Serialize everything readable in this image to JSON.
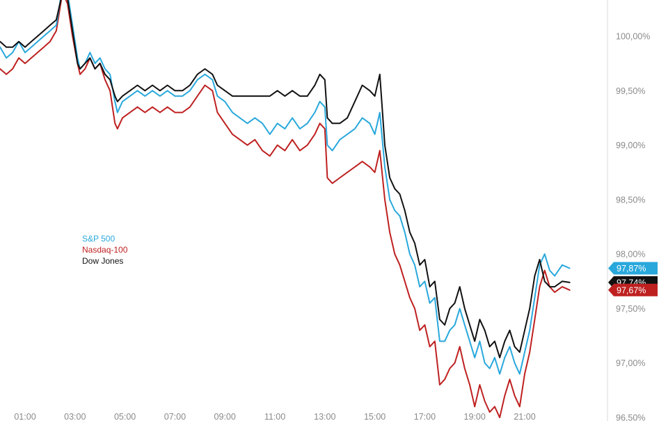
{
  "chart_data": {
    "type": "line",
    "x_ticks": [
      "01:00",
      "03:00",
      "05:00",
      "07:00",
      "09:00",
      "11:00",
      "13:00",
      "15:00",
      "17:00",
      "19:00",
      "21:00"
    ],
    "y_ticks": [
      "100,00%",
      "99,50%",
      "99,00%",
      "98,50%",
      "98,00%",
      "97,50%",
      "97,00%",
      "96,50%"
    ],
    "ylim": [
      96.5,
      100.5
    ],
    "xlim": [
      0.0,
      23.0
    ],
    "grid": false,
    "legend_position": "left-middle",
    "series": [
      {
        "name": "S&P 500",
        "color": "#29a8dc",
        "last_label": "97,87%",
        "points": [
          [
            0.0,
            99.9
          ],
          [
            0.25,
            99.8
          ],
          [
            0.5,
            99.85
          ],
          [
            0.75,
            99.95
          ],
          [
            1.0,
            99.85
          ],
          [
            1.25,
            99.9
          ],
          [
            1.5,
            99.95
          ],
          [
            1.75,
            100.0
          ],
          [
            2.0,
            100.05
          ],
          [
            2.25,
            100.1
          ],
          [
            2.5,
            100.45
          ],
          [
            2.7,
            100.4
          ],
          [
            2.9,
            100.1
          ],
          [
            3.1,
            99.8
          ],
          [
            3.2,
            99.7
          ],
          [
            3.4,
            99.75
          ],
          [
            3.6,
            99.85
          ],
          [
            3.8,
            99.75
          ],
          [
            4.0,
            99.8
          ],
          [
            4.2,
            99.7
          ],
          [
            4.4,
            99.65
          ],
          [
            4.6,
            99.4
          ],
          [
            4.7,
            99.3
          ],
          [
            4.9,
            99.4
          ],
          [
            5.2,
            99.45
          ],
          [
            5.5,
            99.5
          ],
          [
            5.8,
            99.45
          ],
          [
            6.1,
            99.5
          ],
          [
            6.4,
            99.45
          ],
          [
            6.7,
            99.5
          ],
          [
            7.0,
            99.45
          ],
          [
            7.3,
            99.45
          ],
          [
            7.6,
            99.5
          ],
          [
            7.9,
            99.6
          ],
          [
            8.2,
            99.65
          ],
          [
            8.5,
            99.6
          ],
          [
            8.7,
            99.45
          ],
          [
            9.0,
            99.4
          ],
          [
            9.3,
            99.3
          ],
          [
            9.6,
            99.25
          ],
          [
            9.9,
            99.2
          ],
          [
            10.2,
            99.25
          ],
          [
            10.5,
            99.2
          ],
          [
            10.8,
            99.1
          ],
          [
            11.1,
            99.2
          ],
          [
            11.4,
            99.15
          ],
          [
            11.7,
            99.25
          ],
          [
            12.0,
            99.15
          ],
          [
            12.3,
            99.2
          ],
          [
            12.6,
            99.3
          ],
          [
            12.8,
            99.4
          ],
          [
            13.0,
            99.35
          ],
          [
            13.1,
            99.0
          ],
          [
            13.3,
            98.95
          ],
          [
            13.6,
            99.05
          ],
          [
            13.9,
            99.1
          ],
          [
            14.2,
            99.15
          ],
          [
            14.5,
            99.25
          ],
          [
            14.8,
            99.2
          ],
          [
            15.0,
            99.1
          ],
          [
            15.2,
            99.3
          ],
          [
            15.4,
            98.8
          ],
          [
            15.6,
            98.5
          ],
          [
            15.8,
            98.4
          ],
          [
            16.0,
            98.35
          ],
          [
            16.2,
            98.2
          ],
          [
            16.4,
            98.0
          ],
          [
            16.6,
            97.9
          ],
          [
            16.8,
            97.7
          ],
          [
            17.0,
            97.75
          ],
          [
            17.2,
            97.55
          ],
          [
            17.4,
            97.6
          ],
          [
            17.6,
            97.2
          ],
          [
            17.8,
            97.2
          ],
          [
            18.0,
            97.3
          ],
          [
            18.2,
            97.35
          ],
          [
            18.4,
            97.5
          ],
          [
            18.6,
            97.35
          ],
          [
            18.8,
            97.2
          ],
          [
            19.0,
            97.05
          ],
          [
            19.2,
            97.2
          ],
          [
            19.4,
            97.0
          ],
          [
            19.6,
            96.95
          ],
          [
            19.8,
            97.05
          ],
          [
            20.0,
            96.9
          ],
          [
            20.2,
            97.05
          ],
          [
            20.4,
            97.15
          ],
          [
            20.6,
            97.0
          ],
          [
            20.8,
            96.9
          ],
          [
            21.0,
            97.1
          ],
          [
            21.2,
            97.3
          ],
          [
            21.4,
            97.6
          ],
          [
            21.6,
            97.9
          ],
          [
            21.8,
            98.0
          ],
          [
            22.0,
            97.85
          ],
          [
            22.2,
            97.8
          ],
          [
            22.5,
            97.9
          ],
          [
            22.8,
            97.87
          ]
        ]
      },
      {
        "name": "Nasdaq-100",
        "color": "#be2020",
        "last_label": "97,67%",
        "points": [
          [
            0.0,
            99.7
          ],
          [
            0.25,
            99.65
          ],
          [
            0.5,
            99.7
          ],
          [
            0.75,
            99.8
          ],
          [
            1.0,
            99.75
          ],
          [
            1.25,
            99.8
          ],
          [
            1.5,
            99.85
          ],
          [
            1.75,
            99.9
          ],
          [
            2.0,
            99.95
          ],
          [
            2.25,
            100.05
          ],
          [
            2.5,
            100.4
          ],
          [
            2.7,
            100.3
          ],
          [
            2.9,
            100.0
          ],
          [
            3.1,
            99.75
          ],
          [
            3.2,
            99.65
          ],
          [
            3.4,
            99.7
          ],
          [
            3.6,
            99.8
          ],
          [
            3.8,
            99.7
          ],
          [
            4.0,
            99.75
          ],
          [
            4.2,
            99.6
          ],
          [
            4.4,
            99.5
          ],
          [
            4.6,
            99.2
          ],
          [
            4.7,
            99.15
          ],
          [
            4.9,
            99.25
          ],
          [
            5.2,
            99.3
          ],
          [
            5.5,
            99.35
          ],
          [
            5.8,
            99.3
          ],
          [
            6.1,
            99.35
          ],
          [
            6.4,
            99.3
          ],
          [
            6.7,
            99.35
          ],
          [
            7.0,
            99.3
          ],
          [
            7.3,
            99.3
          ],
          [
            7.6,
            99.35
          ],
          [
            7.9,
            99.45
          ],
          [
            8.2,
            99.55
          ],
          [
            8.5,
            99.5
          ],
          [
            8.7,
            99.3
          ],
          [
            9.0,
            99.2
          ],
          [
            9.3,
            99.1
          ],
          [
            9.6,
            99.05
          ],
          [
            9.9,
            99.0
          ],
          [
            10.2,
            99.05
          ],
          [
            10.5,
            98.95
          ],
          [
            10.8,
            98.9
          ],
          [
            11.1,
            99.0
          ],
          [
            11.4,
            98.95
          ],
          [
            11.7,
            99.05
          ],
          [
            12.0,
            98.95
          ],
          [
            12.3,
            99.0
          ],
          [
            12.6,
            99.1
          ],
          [
            12.8,
            99.2
          ],
          [
            13.0,
            99.15
          ],
          [
            13.1,
            98.7
          ],
          [
            13.3,
            98.65
          ],
          [
            13.6,
            98.7
          ],
          [
            13.9,
            98.75
          ],
          [
            14.2,
            98.8
          ],
          [
            14.5,
            98.85
          ],
          [
            14.8,
            98.8
          ],
          [
            15.0,
            98.75
          ],
          [
            15.2,
            98.95
          ],
          [
            15.4,
            98.5
          ],
          [
            15.6,
            98.2
          ],
          [
            15.8,
            98.0
          ],
          [
            16.0,
            97.9
          ],
          [
            16.2,
            97.75
          ],
          [
            16.4,
            97.6
          ],
          [
            16.6,
            97.5
          ],
          [
            16.8,
            97.3
          ],
          [
            17.0,
            97.35
          ],
          [
            17.2,
            97.15
          ],
          [
            17.4,
            97.2
          ],
          [
            17.6,
            96.8
          ],
          [
            17.8,
            96.85
          ],
          [
            18.0,
            96.95
          ],
          [
            18.2,
            97.0
          ],
          [
            18.4,
            97.15
          ],
          [
            18.6,
            96.95
          ],
          [
            18.8,
            96.8
          ],
          [
            19.0,
            96.6
          ],
          [
            19.2,
            96.8
          ],
          [
            19.4,
            96.65
          ],
          [
            19.6,
            96.55
          ],
          [
            19.8,
            96.6
          ],
          [
            20.0,
            96.5
          ],
          [
            20.2,
            96.7
          ],
          [
            20.4,
            96.85
          ],
          [
            20.6,
            96.7
          ],
          [
            20.8,
            96.6
          ],
          [
            21.0,
            96.9
          ],
          [
            21.2,
            97.1
          ],
          [
            21.4,
            97.4
          ],
          [
            21.6,
            97.7
          ],
          [
            21.8,
            97.85
          ],
          [
            22.0,
            97.7
          ],
          [
            22.2,
            97.65
          ],
          [
            22.5,
            97.7
          ],
          [
            22.8,
            97.67
          ]
        ]
      },
      {
        "name": "Dow Jones",
        "color": "#111111",
        "last_label": "97,74%",
        "points": [
          [
            0.0,
            99.95
          ],
          [
            0.25,
            99.9
          ],
          [
            0.5,
            99.9
          ],
          [
            0.75,
            99.95
          ],
          [
            1.0,
            99.9
          ],
          [
            1.25,
            99.95
          ],
          [
            1.5,
            100.0
          ],
          [
            1.75,
            100.05
          ],
          [
            2.0,
            100.1
          ],
          [
            2.25,
            100.15
          ],
          [
            2.5,
            100.4
          ],
          [
            2.7,
            100.35
          ],
          [
            2.9,
            100.05
          ],
          [
            3.1,
            99.75
          ],
          [
            3.2,
            99.7
          ],
          [
            3.4,
            99.75
          ],
          [
            3.6,
            99.8
          ],
          [
            3.8,
            99.7
          ],
          [
            4.0,
            99.75
          ],
          [
            4.2,
            99.65
          ],
          [
            4.4,
            99.6
          ],
          [
            4.6,
            99.45
          ],
          [
            4.7,
            99.4
          ],
          [
            4.9,
            99.45
          ],
          [
            5.2,
            99.5
          ],
          [
            5.5,
            99.55
          ],
          [
            5.8,
            99.5
          ],
          [
            6.1,
            99.55
          ],
          [
            6.4,
            99.5
          ],
          [
            6.7,
            99.55
          ],
          [
            7.0,
            99.5
          ],
          [
            7.3,
            99.5
          ],
          [
            7.6,
            99.55
          ],
          [
            7.9,
            99.65
          ],
          [
            8.2,
            99.7
          ],
          [
            8.5,
            99.65
          ],
          [
            8.7,
            99.55
          ],
          [
            9.0,
            99.5
          ],
          [
            9.3,
            99.45
          ],
          [
            9.6,
            99.45
          ],
          [
            9.9,
            99.45
          ],
          [
            10.2,
            99.45
          ],
          [
            10.5,
            99.45
          ],
          [
            10.8,
            99.45
          ],
          [
            11.1,
            99.5
          ],
          [
            11.4,
            99.45
          ],
          [
            11.7,
            99.5
          ],
          [
            12.0,
            99.45
          ],
          [
            12.3,
            99.45
          ],
          [
            12.6,
            99.55
          ],
          [
            12.8,
            99.65
          ],
          [
            13.0,
            99.6
          ],
          [
            13.1,
            99.25
          ],
          [
            13.3,
            99.2
          ],
          [
            13.6,
            99.2
          ],
          [
            13.9,
            99.25
          ],
          [
            14.2,
            99.4
          ],
          [
            14.5,
            99.55
          ],
          [
            14.8,
            99.5
          ],
          [
            15.0,
            99.45
          ],
          [
            15.2,
            99.65
          ],
          [
            15.4,
            99.0
          ],
          [
            15.6,
            98.7
          ],
          [
            15.8,
            98.6
          ],
          [
            16.0,
            98.55
          ],
          [
            16.2,
            98.4
          ],
          [
            16.4,
            98.2
          ],
          [
            16.6,
            98.1
          ],
          [
            16.8,
            97.9
          ],
          [
            17.0,
            97.95
          ],
          [
            17.2,
            97.7
          ],
          [
            17.4,
            97.75
          ],
          [
            17.6,
            97.4
          ],
          [
            17.8,
            97.35
          ],
          [
            18.0,
            97.5
          ],
          [
            18.2,
            97.55
          ],
          [
            18.4,
            97.7
          ],
          [
            18.6,
            97.5
          ],
          [
            18.8,
            97.35
          ],
          [
            19.0,
            97.2
          ],
          [
            19.2,
            97.4
          ],
          [
            19.4,
            97.3
          ],
          [
            19.6,
            97.15
          ],
          [
            19.8,
            97.2
          ],
          [
            20.0,
            97.05
          ],
          [
            20.2,
            97.2
          ],
          [
            20.4,
            97.3
          ],
          [
            20.6,
            97.15
          ],
          [
            20.8,
            97.1
          ],
          [
            21.0,
            97.3
          ],
          [
            21.2,
            97.5
          ],
          [
            21.4,
            97.8
          ],
          [
            21.6,
            97.95
          ],
          [
            21.8,
            97.75
          ],
          [
            22.0,
            97.7
          ],
          [
            22.2,
            97.7
          ],
          [
            22.5,
            97.75
          ],
          [
            22.8,
            97.74
          ]
        ]
      }
    ]
  }
}
